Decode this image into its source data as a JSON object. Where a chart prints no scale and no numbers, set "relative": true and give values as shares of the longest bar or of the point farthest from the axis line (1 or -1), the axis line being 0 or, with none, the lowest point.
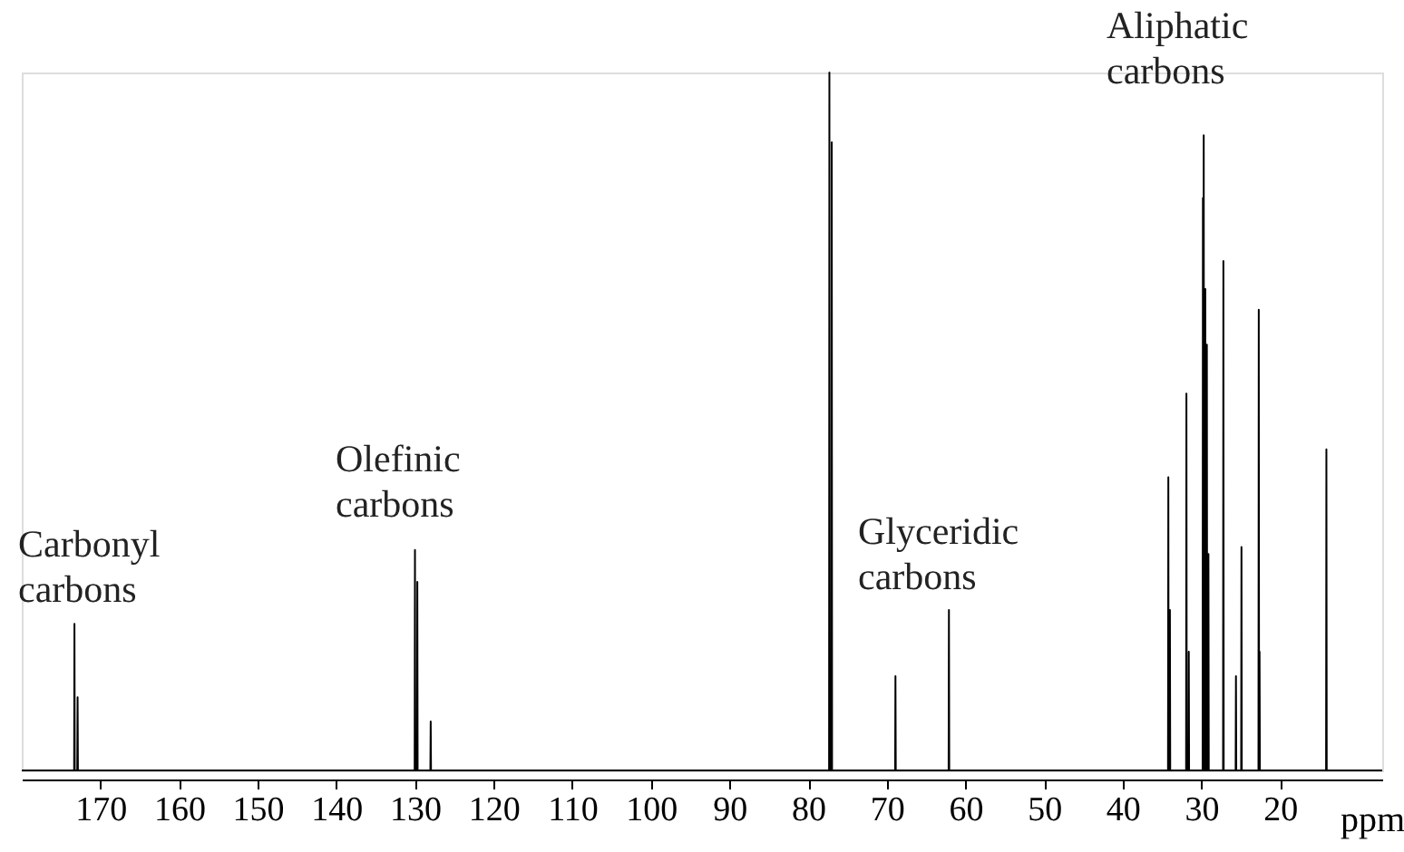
{
  "chart_data": {
    "type": "line",
    "relative": true,
    "xlabel": "ppm",
    "xlim": [
      180,
      7
    ],
    "xticks": [
      170,
      160,
      150,
      140,
      130,
      120,
      110,
      100,
      90,
      80,
      70,
      60,
      50,
      40,
      30,
      20
    ],
    "x": [
      180,
      173.34,
      173.3,
      173.26,
      172.94,
      172.9,
      172.86,
      130.04,
      130.0,
      129.96,
      129.74,
      129.7,
      129.66,
      128.04,
      128.0,
      127.96,
      77.34,
      77.3,
      77.26,
      77.04,
      77.0,
      76.96,
      68.94,
      68.9,
      68.86,
      62.14,
      62.1,
      62.06,
      34.24,
      34.2,
      34.16,
      34.04,
      34.0,
      33.96,
      31.94,
      31.9,
      31.86,
      31.64,
      31.6,
      31.56,
      29.84,
      29.8,
      29.76,
      29.74,
      29.7,
      29.66,
      29.54,
      29.5,
      29.46,
      29.34,
      29.3,
      29.26,
      29.14,
      29.1,
      29.06,
      27.24,
      27.2,
      27.16,
      25.64,
      25.6,
      25.56,
      24.94,
      24.9,
      24.86,
      22.74,
      22.7,
      22.66,
      22.64,
      22.6,
      22.56,
      14.14,
      14.1,
      14.06,
      7
    ],
    "series": [
      {
        "color": "#000000",
        "values": [
          0,
          0,
          0.21,
          0,
          0,
          0.105,
          0,
          0,
          0.316,
          0,
          0,
          0.27,
          0,
          0,
          0.07,
          0,
          0,
          1.0,
          0,
          0,
          0.9,
          0,
          0,
          0.135,
          0,
          0,
          0.23,
          0,
          0,
          0.42,
          0,
          0,
          0.23,
          0,
          0,
          0.54,
          0,
          0,
          0.17,
          0,
          0,
          0.82,
          0,
          0,
          0.91,
          0,
          0,
          0.69,
          0,
          0,
          0.61,
          0,
          0,
          0.31,
          0,
          0,
          0.73,
          0,
          0,
          0.135,
          0,
          0,
          0.32,
          0,
          0,
          0.66,
          0,
          0,
          0.17,
          0,
          0,
          0.46,
          0,
          0
        ]
      }
    ],
    "annotations": [
      "Carbonyl\ncarbons",
      "Olefinic\ncarbons",
      "Glyceridic\ncarbons",
      "Aliphatic\ncarbons"
    ],
    "grid": false,
    "marker": "none",
    "line_style": "solid"
  }
}
